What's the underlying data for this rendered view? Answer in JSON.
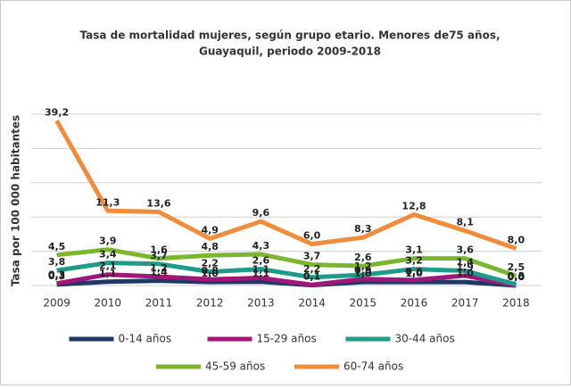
{
  "chart_data": {
    "type": "line",
    "stacked": true,
    "title": [
      "Tasa de mortalidad mujeres, según grupo etario. Menores de75 años,",
      "Guayaquil, periodo 2009-2018"
    ],
    "y_label": "Tasa por 100 000 habitantes",
    "categories": [
      "2009",
      "2010",
      "2011",
      "2012",
      "2013",
      "2014",
      "2015",
      "2016",
      "2017",
      "2018"
    ],
    "ylim": [
      0,
      50
    ],
    "yticks": [
      0,
      10,
      20,
      30,
      40,
      50
    ],
    "grid": true,
    "legend": "bottom",
    "series": [
      {
        "name": "0-14 años",
        "color": "#1f3864",
        "values": [
          0.3,
          1.1,
          1.4,
          1.0,
          1.1,
          0.1,
          1.0,
          1.0,
          1.0,
          0.0
        ],
        "value_labels": [
          "0,3",
          "1,1",
          "1,4",
          "1,0",
          "1,1",
          "0,1",
          "1,0",
          "1,0",
          "1,0",
          "0,0"
        ]
      },
      {
        "name": "15-29 años",
        "color": "#a0177a",
        "values": [
          0.3,
          2.1,
          1.2,
          0.8,
          1.1,
          0.1,
          0.9,
          0.6,
          1.9,
          0.0
        ],
        "value_labels": [
          "0,3",
          "2,1",
          "1,2",
          "0,8",
          "1,1",
          "0,1",
          "0,9",
          "0,6",
          "1,9",
          "0,0"
        ]
      },
      {
        "name": "30-44 años",
        "color": "#1f9b8a",
        "values": [
          3.8,
          3.4,
          3.7,
          2.2,
          2.6,
          2.2,
          1.2,
          3.2,
          1.4,
          0.3
        ],
        "value_labels": [
          "3,8",
          "3,4",
          "3,7",
          "2,2",
          "2,6",
          "2,2",
          "1,2",
          "3,2",
          "1,4",
          "0,3"
        ]
      },
      {
        "name": "45-59 años",
        "color": "#7cb62e",
        "values": [
          4.5,
          3.9,
          1.6,
          4.8,
          4.3,
          3.7,
          2.6,
          3.1,
          3.6,
          2.5
        ],
        "value_labels": [
          "4,5",
          "3,9",
          "1,6",
          "4,8",
          "4,3",
          "3,7",
          "2,6",
          "3,1",
          "3,6",
          "2,5"
        ]
      },
      {
        "name": "60-74 años",
        "color": "#f08c3c",
        "values": [
          39.2,
          11.3,
          13.6,
          4.9,
          9.6,
          6.0,
          8.3,
          12.8,
          8.1,
          8.0
        ],
        "value_labels": [
          "39,2",
          "11,3",
          "13,6",
          "4,9",
          "9,6",
          "6,0",
          "8,3",
          "12,8",
          "8,1",
          "8,0"
        ]
      }
    ]
  }
}
